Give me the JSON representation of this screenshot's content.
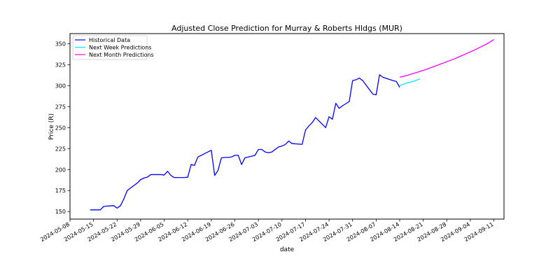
{
  "chart_data": {
    "type": "line",
    "title": "Adjusted Close Prediction for Murray & Roberts Hldgs (MUR)",
    "xlabel": "date",
    "ylabel": "Price (R)",
    "xlim": [
      "2024-05-08",
      "2024-09-14"
    ],
    "ylim": [
      141,
      362
    ],
    "x_ticks": [
      "2024-05-08",
      "2024-05-15",
      "2024-05-22",
      "2024-05-29",
      "2024-06-05",
      "2024-06-12",
      "2024-06-19",
      "2024-06-26",
      "2024-07-03",
      "2024-07-10",
      "2024-07-17",
      "2024-07-24",
      "2024-07-31",
      "2024-08-07",
      "2024-08-14",
      "2024-08-21",
      "2024-08-28",
      "2024-09-04",
      "2024-09-11"
    ],
    "y_ticks": [
      150,
      175,
      200,
      225,
      250,
      275,
      300,
      325,
      350
    ],
    "grid": false,
    "legend_position": "top-left",
    "series": [
      {
        "name": "Historical Data",
        "color": "#0000ff",
        "points": [
          [
            "2024-05-14",
            152
          ],
          [
            "2024-05-15",
            152
          ],
          [
            "2024-05-16",
            152
          ],
          [
            "2024-05-17",
            152
          ],
          [
            "2024-05-18",
            156
          ],
          [
            "2024-05-19",
            156.5
          ],
          [
            "2024-05-20",
            156.8
          ],
          [
            "2024-05-21",
            157
          ],
          [
            "2024-05-22",
            154
          ],
          [
            "2024-05-23",
            157
          ],
          [
            "2024-05-24",
            165
          ],
          [
            "2024-05-25",
            175
          ],
          [
            "2024-05-26",
            178
          ],
          [
            "2024-05-27",
            181
          ],
          [
            "2024-05-28",
            184
          ],
          [
            "2024-05-29",
            188
          ],
          [
            "2024-05-30",
            190
          ],
          [
            "2024-05-31",
            191
          ],
          [
            "2024-06-01",
            194
          ],
          [
            "2024-06-02",
            194
          ],
          [
            "2024-06-03",
            194
          ],
          [
            "2024-06-04",
            194
          ],
          [
            "2024-06-05",
            193.5
          ],
          [
            "2024-06-06",
            198
          ],
          [
            "2024-06-07",
            193
          ],
          [
            "2024-06-08",
            190.5
          ],
          [
            "2024-06-09",
            190.5
          ],
          [
            "2024-06-10",
            190.5
          ],
          [
            "2024-06-11",
            190.5
          ],
          [
            "2024-06-12",
            191
          ],
          [
            "2024-06-13",
            206
          ],
          [
            "2024-06-14",
            205
          ],
          [
            "2024-06-15",
            215
          ],
          [
            "2024-06-18",
            221
          ],
          [
            "2024-06-19",
            223
          ],
          [
            "2024-06-20",
            193
          ],
          [
            "2024-06-21",
            199
          ],
          [
            "2024-06-22",
            214
          ],
          [
            "2024-06-23",
            214.5
          ],
          [
            "2024-06-24",
            214.5
          ],
          [
            "2024-06-25",
            215
          ],
          [
            "2024-06-26",
            217
          ],
          [
            "2024-06-27",
            217
          ],
          [
            "2024-06-28",
            206
          ],
          [
            "2024-06-29",
            214
          ],
          [
            "2024-06-30",
            215
          ],
          [
            "2024-07-01",
            216
          ],
          [
            "2024-07-02",
            217
          ],
          [
            "2024-07-03",
            224
          ],
          [
            "2024-07-04",
            224
          ],
          [
            "2024-07-05",
            221
          ],
          [
            "2024-07-06",
            220
          ],
          [
            "2024-07-07",
            221
          ],
          [
            "2024-07-09",
            227
          ],
          [
            "2024-07-10",
            228
          ],
          [
            "2024-07-11",
            230
          ],
          [
            "2024-07-12",
            234
          ],
          [
            "2024-07-13",
            231
          ],
          [
            "2024-07-16",
            230
          ],
          [
            "2024-07-17",
            247
          ],
          [
            "2024-07-18",
            252
          ],
          [
            "2024-07-19",
            256
          ],
          [
            "2024-07-20",
            262
          ],
          [
            "2024-07-23",
            250
          ],
          [
            "2024-07-24",
            263
          ],
          [
            "2024-07-25",
            260
          ],
          [
            "2024-07-26",
            279
          ],
          [
            "2024-07-27",
            273
          ],
          [
            "2024-07-28",
            276
          ],
          [
            "2024-07-30",
            281
          ],
          [
            "2024-07-31",
            306
          ],
          [
            "2024-08-01",
            307
          ],
          [
            "2024-08-02",
            309
          ],
          [
            "2024-08-03",
            306
          ],
          [
            "2024-08-06",
            290
          ],
          [
            "2024-08-07",
            289
          ],
          [
            "2024-08-08",
            313
          ],
          [
            "2024-08-09",
            310
          ],
          [
            "2024-08-12",
            306
          ],
          [
            "2024-08-13",
            305
          ],
          [
            "2024-08-14",
            298
          ]
        ]
      },
      {
        "name": "Next Week Predictions",
        "color": "#00e5ff",
        "points": [
          [
            "2024-08-14",
            300
          ],
          [
            "2024-08-15",
            301.5
          ],
          [
            "2024-08-16",
            303
          ],
          [
            "2024-08-17",
            304
          ],
          [
            "2024-08-18",
            305
          ],
          [
            "2024-08-19",
            306.5
          ],
          [
            "2024-08-20",
            308
          ]
        ]
      },
      {
        "name": "Next Month Predictions",
        "color": "#ff00ff",
        "points": [
          [
            "2024-08-14",
            310
          ],
          [
            "2024-08-16",
            312
          ],
          [
            "2024-08-18",
            314.5
          ],
          [
            "2024-08-20",
            317
          ],
          [
            "2024-08-22",
            319.5
          ],
          [
            "2024-08-24",
            322.5
          ],
          [
            "2024-08-26",
            325.5
          ],
          [
            "2024-08-28",
            328.5
          ],
          [
            "2024-08-30",
            331.5
          ],
          [
            "2024-09-01",
            335
          ],
          [
            "2024-09-03",
            338.5
          ],
          [
            "2024-09-05",
            342
          ],
          [
            "2024-09-07",
            346
          ],
          [
            "2024-09-09",
            350
          ],
          [
            "2024-09-11",
            355
          ]
        ]
      }
    ]
  }
}
